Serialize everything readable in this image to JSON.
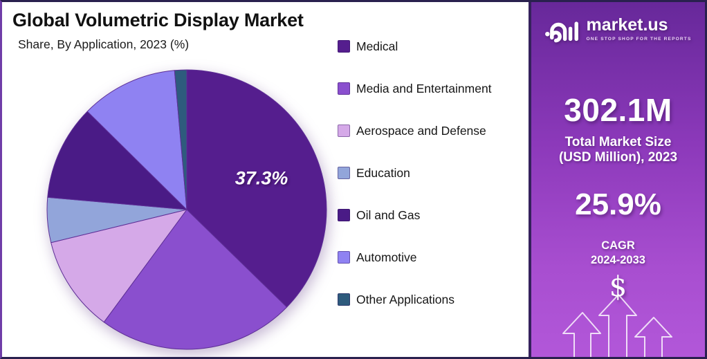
{
  "header": {
    "title": "Global Volumetric Display Market",
    "subtitle": "Share, By Application, 2023 (%)"
  },
  "chart_data": {
    "type": "pie",
    "title": "Global Volumetric Display Market",
    "subtitle": "Share, By Application, 2023 (%)",
    "unit": "percent-share",
    "start_angle_deg": 0,
    "direction": "clockwise",
    "legend_position": "right",
    "labeled_slice": "Medical",
    "slices": [
      {
        "label": "Medical",
        "value": 37.3,
        "display_label": "37.3%",
        "color": "#551e8e"
      },
      {
        "label": "Media and Entertainment",
        "value": 22.8,
        "display_label": "",
        "color": "#8a4fce"
      },
      {
        "label": "Aerospace and Defense",
        "value": 11.1,
        "display_label": "",
        "color": "#d5a9e8"
      },
      {
        "label": "Education",
        "value": 5.2,
        "display_label": "",
        "color": "#92a5da"
      },
      {
        "label": "Oil and Gas",
        "value": 11.0,
        "display_label": "",
        "color": "#4a1b86"
      },
      {
        "label": "Automotive",
        "value": 11.2,
        "display_label": "",
        "color": "#8f82f2"
      },
      {
        "label": "Other Applications",
        "value": 1.4,
        "display_label": "",
        "color": "#2e5b7d"
      }
    ]
  },
  "side_panel": {
    "brand": {
      "name": "market.us",
      "tagline": "ONE STOP SHOP FOR THE REPORTS"
    },
    "market_size": {
      "value": "302.1M",
      "label_line1": "Total Market Size",
      "label_line2": "(USD Million), 2023"
    },
    "cagr": {
      "value": "25.9%",
      "label_line1": "CAGR",
      "label_line2": "2024-2033"
    },
    "currency_symbol": "$",
    "colors": {
      "gradient_top": "#67289a",
      "gradient_bottom": "#b257d9"
    }
  }
}
